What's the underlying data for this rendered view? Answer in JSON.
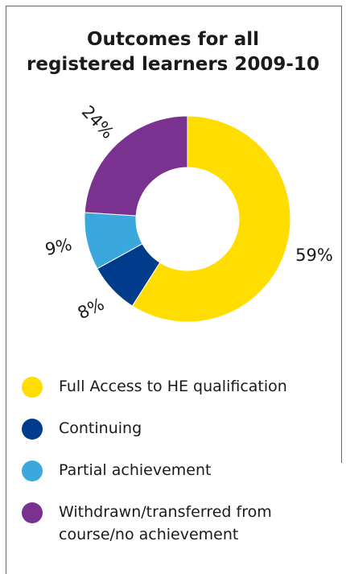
{
  "chart_data": {
    "type": "pie",
    "donut": true,
    "title": [
      "Outcomes for all",
      "registered learners 2009-10"
    ],
    "categories": [
      "Full Access to HE qualification",
      "Continuing",
      "Partial achievement",
      "Withdrawn/transferred from course/no achievement"
    ],
    "values": [
      59,
      8,
      9,
      24
    ],
    "value_labels": [
      "59%",
      "8%",
      "9%",
      "24%"
    ],
    "colors": [
      "#ffdd00",
      "#003b8c",
      "#3aa8dc",
      "#7a3190"
    ],
    "legend": "bottom"
  }
}
